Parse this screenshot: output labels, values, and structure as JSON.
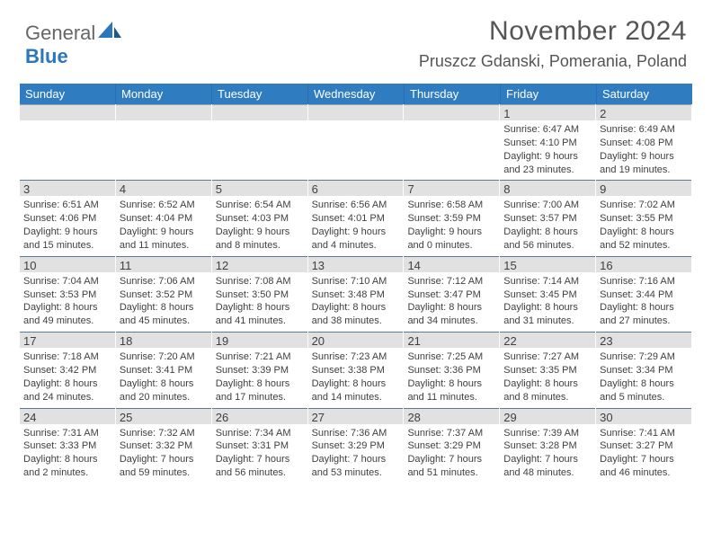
{
  "logo": {
    "general": "General",
    "blue": "Blue"
  },
  "title": "November 2024",
  "location": "Pruszcz Gdanski, Pomerania, Poland",
  "header_bg": "#2f7cc0",
  "dow": [
    "Sunday",
    "Monday",
    "Tuesday",
    "Wednesday",
    "Thursday",
    "Friday",
    "Saturday"
  ],
  "weeks": [
    [
      {
        "n": "",
        "sr": "",
        "ss": "",
        "d1": "",
        "d2": ""
      },
      {
        "n": "",
        "sr": "",
        "ss": "",
        "d1": "",
        "d2": ""
      },
      {
        "n": "",
        "sr": "",
        "ss": "",
        "d1": "",
        "d2": ""
      },
      {
        "n": "",
        "sr": "",
        "ss": "",
        "d1": "",
        "d2": ""
      },
      {
        "n": "",
        "sr": "",
        "ss": "",
        "d1": "",
        "d2": ""
      },
      {
        "n": "1",
        "sr": "Sunrise: 6:47 AM",
        "ss": "Sunset: 4:10 PM",
        "d1": "Daylight: 9 hours",
        "d2": "and 23 minutes."
      },
      {
        "n": "2",
        "sr": "Sunrise: 6:49 AM",
        "ss": "Sunset: 4:08 PM",
        "d1": "Daylight: 9 hours",
        "d2": "and 19 minutes."
      }
    ],
    [
      {
        "n": "3",
        "sr": "Sunrise: 6:51 AM",
        "ss": "Sunset: 4:06 PM",
        "d1": "Daylight: 9 hours",
        "d2": "and 15 minutes."
      },
      {
        "n": "4",
        "sr": "Sunrise: 6:52 AM",
        "ss": "Sunset: 4:04 PM",
        "d1": "Daylight: 9 hours",
        "d2": "and 11 minutes."
      },
      {
        "n": "5",
        "sr": "Sunrise: 6:54 AM",
        "ss": "Sunset: 4:03 PM",
        "d1": "Daylight: 9 hours",
        "d2": "and 8 minutes."
      },
      {
        "n": "6",
        "sr": "Sunrise: 6:56 AM",
        "ss": "Sunset: 4:01 PM",
        "d1": "Daylight: 9 hours",
        "d2": "and 4 minutes."
      },
      {
        "n": "7",
        "sr": "Sunrise: 6:58 AM",
        "ss": "Sunset: 3:59 PM",
        "d1": "Daylight: 9 hours",
        "d2": "and 0 minutes."
      },
      {
        "n": "8",
        "sr": "Sunrise: 7:00 AM",
        "ss": "Sunset: 3:57 PM",
        "d1": "Daylight: 8 hours",
        "d2": "and 56 minutes."
      },
      {
        "n": "9",
        "sr": "Sunrise: 7:02 AM",
        "ss": "Sunset: 3:55 PM",
        "d1": "Daylight: 8 hours",
        "d2": "and 52 minutes."
      }
    ],
    [
      {
        "n": "10",
        "sr": "Sunrise: 7:04 AM",
        "ss": "Sunset: 3:53 PM",
        "d1": "Daylight: 8 hours",
        "d2": "and 49 minutes."
      },
      {
        "n": "11",
        "sr": "Sunrise: 7:06 AM",
        "ss": "Sunset: 3:52 PM",
        "d1": "Daylight: 8 hours",
        "d2": "and 45 minutes."
      },
      {
        "n": "12",
        "sr": "Sunrise: 7:08 AM",
        "ss": "Sunset: 3:50 PM",
        "d1": "Daylight: 8 hours",
        "d2": "and 41 minutes."
      },
      {
        "n": "13",
        "sr": "Sunrise: 7:10 AM",
        "ss": "Sunset: 3:48 PM",
        "d1": "Daylight: 8 hours",
        "d2": "and 38 minutes."
      },
      {
        "n": "14",
        "sr": "Sunrise: 7:12 AM",
        "ss": "Sunset: 3:47 PM",
        "d1": "Daylight: 8 hours",
        "d2": "and 34 minutes."
      },
      {
        "n": "15",
        "sr": "Sunrise: 7:14 AM",
        "ss": "Sunset: 3:45 PM",
        "d1": "Daylight: 8 hours",
        "d2": "and 31 minutes."
      },
      {
        "n": "16",
        "sr": "Sunrise: 7:16 AM",
        "ss": "Sunset: 3:44 PM",
        "d1": "Daylight: 8 hours",
        "d2": "and 27 minutes."
      }
    ],
    [
      {
        "n": "17",
        "sr": "Sunrise: 7:18 AM",
        "ss": "Sunset: 3:42 PM",
        "d1": "Daylight: 8 hours",
        "d2": "and 24 minutes."
      },
      {
        "n": "18",
        "sr": "Sunrise: 7:20 AM",
        "ss": "Sunset: 3:41 PM",
        "d1": "Daylight: 8 hours",
        "d2": "and 20 minutes."
      },
      {
        "n": "19",
        "sr": "Sunrise: 7:21 AM",
        "ss": "Sunset: 3:39 PM",
        "d1": "Daylight: 8 hours",
        "d2": "and 17 minutes."
      },
      {
        "n": "20",
        "sr": "Sunrise: 7:23 AM",
        "ss": "Sunset: 3:38 PM",
        "d1": "Daylight: 8 hours",
        "d2": "and 14 minutes."
      },
      {
        "n": "21",
        "sr": "Sunrise: 7:25 AM",
        "ss": "Sunset: 3:36 PM",
        "d1": "Daylight: 8 hours",
        "d2": "and 11 minutes."
      },
      {
        "n": "22",
        "sr": "Sunrise: 7:27 AM",
        "ss": "Sunset: 3:35 PM",
        "d1": "Daylight: 8 hours",
        "d2": "and 8 minutes."
      },
      {
        "n": "23",
        "sr": "Sunrise: 7:29 AM",
        "ss": "Sunset: 3:34 PM",
        "d1": "Daylight: 8 hours",
        "d2": "and 5 minutes."
      }
    ],
    [
      {
        "n": "24",
        "sr": "Sunrise: 7:31 AM",
        "ss": "Sunset: 3:33 PM",
        "d1": "Daylight: 8 hours",
        "d2": "and 2 minutes."
      },
      {
        "n": "25",
        "sr": "Sunrise: 7:32 AM",
        "ss": "Sunset: 3:32 PM",
        "d1": "Daylight: 7 hours",
        "d2": "and 59 minutes."
      },
      {
        "n": "26",
        "sr": "Sunrise: 7:34 AM",
        "ss": "Sunset: 3:31 PM",
        "d1": "Daylight: 7 hours",
        "d2": "and 56 minutes."
      },
      {
        "n": "27",
        "sr": "Sunrise: 7:36 AM",
        "ss": "Sunset: 3:29 PM",
        "d1": "Daylight: 7 hours",
        "d2": "and 53 minutes."
      },
      {
        "n": "28",
        "sr": "Sunrise: 7:37 AM",
        "ss": "Sunset: 3:29 PM",
        "d1": "Daylight: 7 hours",
        "d2": "and 51 minutes."
      },
      {
        "n": "29",
        "sr": "Sunrise: 7:39 AM",
        "ss": "Sunset: 3:28 PM",
        "d1": "Daylight: 7 hours",
        "d2": "and 48 minutes."
      },
      {
        "n": "30",
        "sr": "Sunrise: 7:41 AM",
        "ss": "Sunset: 3:27 PM",
        "d1": "Daylight: 7 hours",
        "d2": "and 46 minutes."
      }
    ]
  ]
}
